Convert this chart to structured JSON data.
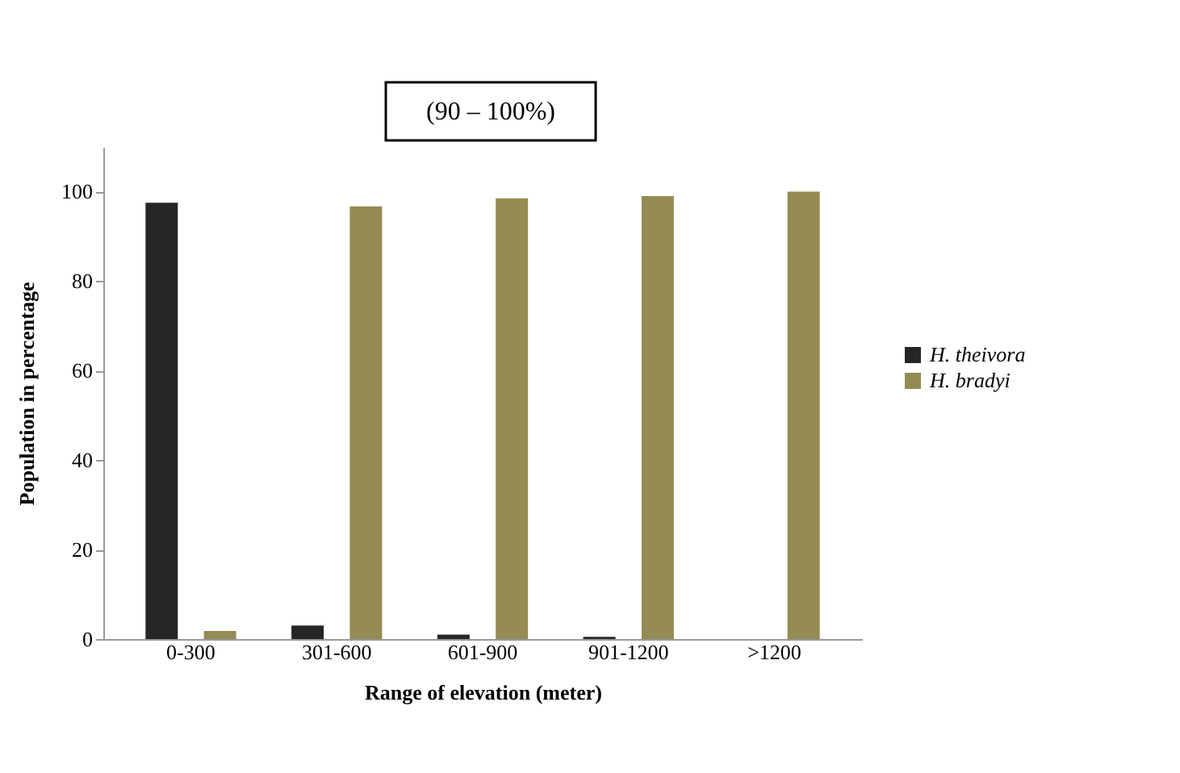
{
  "chart_data": {
    "type": "bar",
    "annotations": [
      "(90 – 100%)"
    ],
    "xlabel": "Range of elevation (meter)",
    "ylabel": "Population in percentage",
    "categories": [
      "0-300",
      "301-600",
      "601-900",
      "901-1200",
      ">1200"
    ],
    "series": [
      {
        "name": "H. theivora",
        "color": "#262626",
        "values": [
          97.5,
          3,
          1,
          0.5,
          0
        ]
      },
      {
        "name": "H. bradyi",
        "color": "#948b54",
        "values": [
          1.8,
          96.7,
          98.5,
          99,
          100
        ]
      }
    ],
    "ylim": [
      0,
      110
    ],
    "yticks": [
      0,
      20,
      40,
      60,
      80,
      100
    ],
    "grid": false,
    "legend": "right"
  }
}
